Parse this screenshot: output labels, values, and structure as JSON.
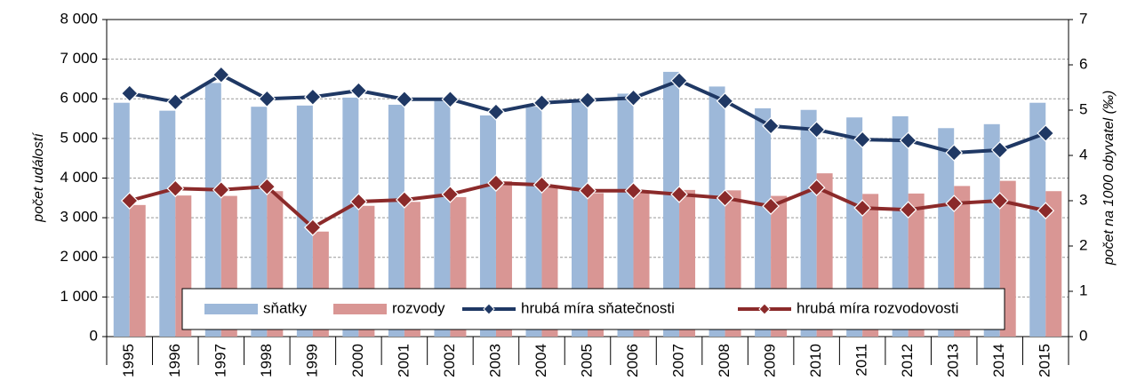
{
  "chart_data": {
    "type": "bar",
    "categories": [
      "1995",
      "1996",
      "1997",
      "1998",
      "1999",
      "2000",
      "2001",
      "2002",
      "2003",
      "2004",
      "2005",
      "2006",
      "2007",
      "2008",
      "2009",
      "2010",
      "2011",
      "2012",
      "2013",
      "2014",
      "2015"
    ],
    "series": [
      {
        "name": "sňatky",
        "type": "bar",
        "color": "#9db8d9",
        "values": [
          5900,
          5700,
          6400,
          5800,
          5830,
          6030,
          5850,
          5950,
          5580,
          5800,
          5970,
          6130,
          6680,
          6310,
          5760,
          5720,
          5530,
          5560,
          5260,
          5360,
          5900
        ]
      },
      {
        "name": "rozvody",
        "type": "bar",
        "color": "#d99694",
        "values": [
          3320,
          3560,
          3550,
          3670,
          2650,
          3300,
          3400,
          3520,
          3920,
          3780,
          3620,
          3660,
          3700,
          3690,
          3550,
          4120,
          3600,
          3610,
          3800,
          3930,
          3670
        ]
      },
      {
        "name": "hrubá míra sňatečnosti",
        "type": "line",
        "axis": "y2",
        "color": "#1f3864",
        "values": [
          5.37,
          5.18,
          5.78,
          5.25,
          5.29,
          5.43,
          5.24,
          5.24,
          4.96,
          5.16,
          5.22,
          5.27,
          5.65,
          5.2,
          4.65,
          4.57,
          4.35,
          4.33,
          4.06,
          4.12,
          4.49
        ]
      },
      {
        "name": "hrubá míra rozvodovosti",
        "type": "line",
        "axis": "y2",
        "color": "#8b2a2a",
        "values": [
          3.0,
          3.27,
          3.24,
          3.31,
          2.41,
          2.98,
          3.02,
          3.14,
          3.39,
          3.35,
          3.22,
          3.22,
          3.14,
          3.06,
          2.88,
          3.29,
          2.84,
          2.8,
          2.94,
          3.0,
          2.78
        ]
      }
    ],
    "ylabel": "počet událostí",
    "y2label": "počet na 1000 obyvatel (‰)",
    "ylim": [
      0,
      8000
    ],
    "yticks": [
      0,
      {
        "value": 1000,
        "label": "1 000"
      },
      {
        "value": 2000,
        "label": "2 000"
      },
      {
        "value": 3000,
        "label": "3 000"
      },
      {
        "value": 4000,
        "label": "4 000"
      },
      {
        "value": 5000,
        "label": "5 000"
      },
      {
        "value": 6000,
        "label": "6 000"
      },
      {
        "value": 7000,
        "label": "7 000"
      },
      {
        "value": 8000,
        "label": "8 000"
      }
    ],
    "y2lim": [
      0,
      7
    ],
    "y2ticks": [
      0,
      1,
      2,
      3,
      4,
      5,
      6,
      7
    ],
    "grid": true,
    "legend": "bottom"
  }
}
